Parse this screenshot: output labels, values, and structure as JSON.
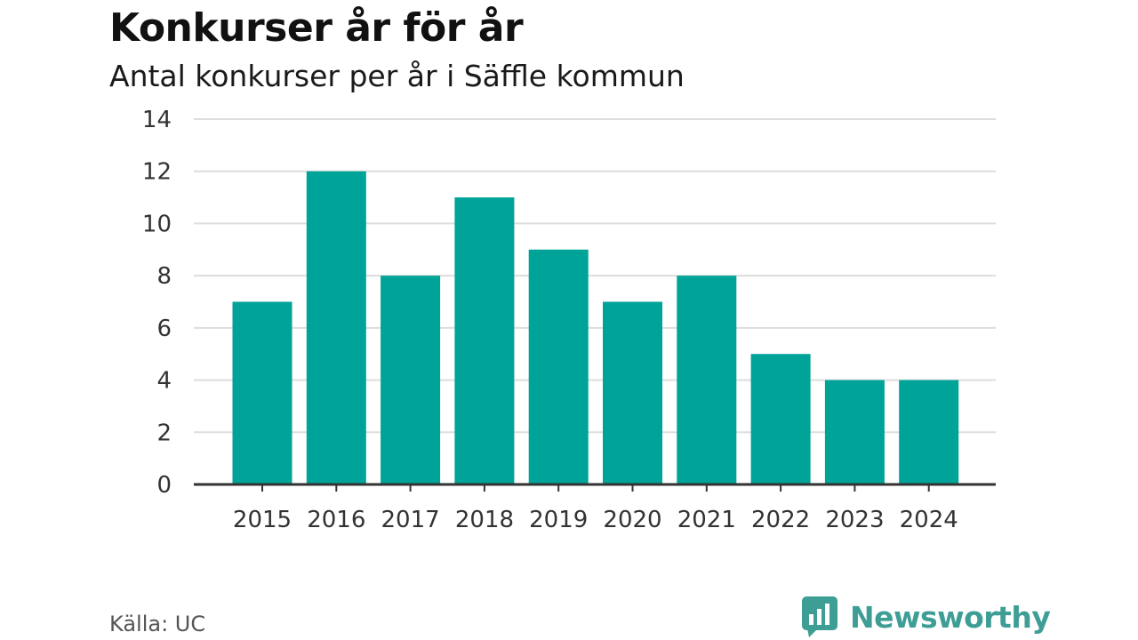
{
  "header": {
    "title": "Konkurser år för år",
    "subtitle": "Antal konkurser per år i Säffle kommun"
  },
  "footer": {
    "source": "Källa: UC",
    "brand": "Newsworthy",
    "brand_icon": "bar-chart-speech-bubble-icon",
    "brand_color": "#3e9e95"
  },
  "chart_data": {
    "type": "bar",
    "categories": [
      "2015",
      "2016",
      "2017",
      "2018",
      "2019",
      "2020",
      "2021",
      "2022",
      "2023",
      "2024"
    ],
    "values": [
      7,
      12,
      8,
      11,
      9,
      7,
      8,
      5,
      4,
      4
    ],
    "ylim": [
      0,
      14
    ],
    "yticks": [
      0,
      2,
      4,
      6,
      8,
      10,
      12,
      14
    ],
    "xlabel": "",
    "ylabel": "",
    "grid": true,
    "legend": "none",
    "bar_color": "#00a398",
    "grid_color": "#dddddd",
    "axis_color": "#333333"
  }
}
